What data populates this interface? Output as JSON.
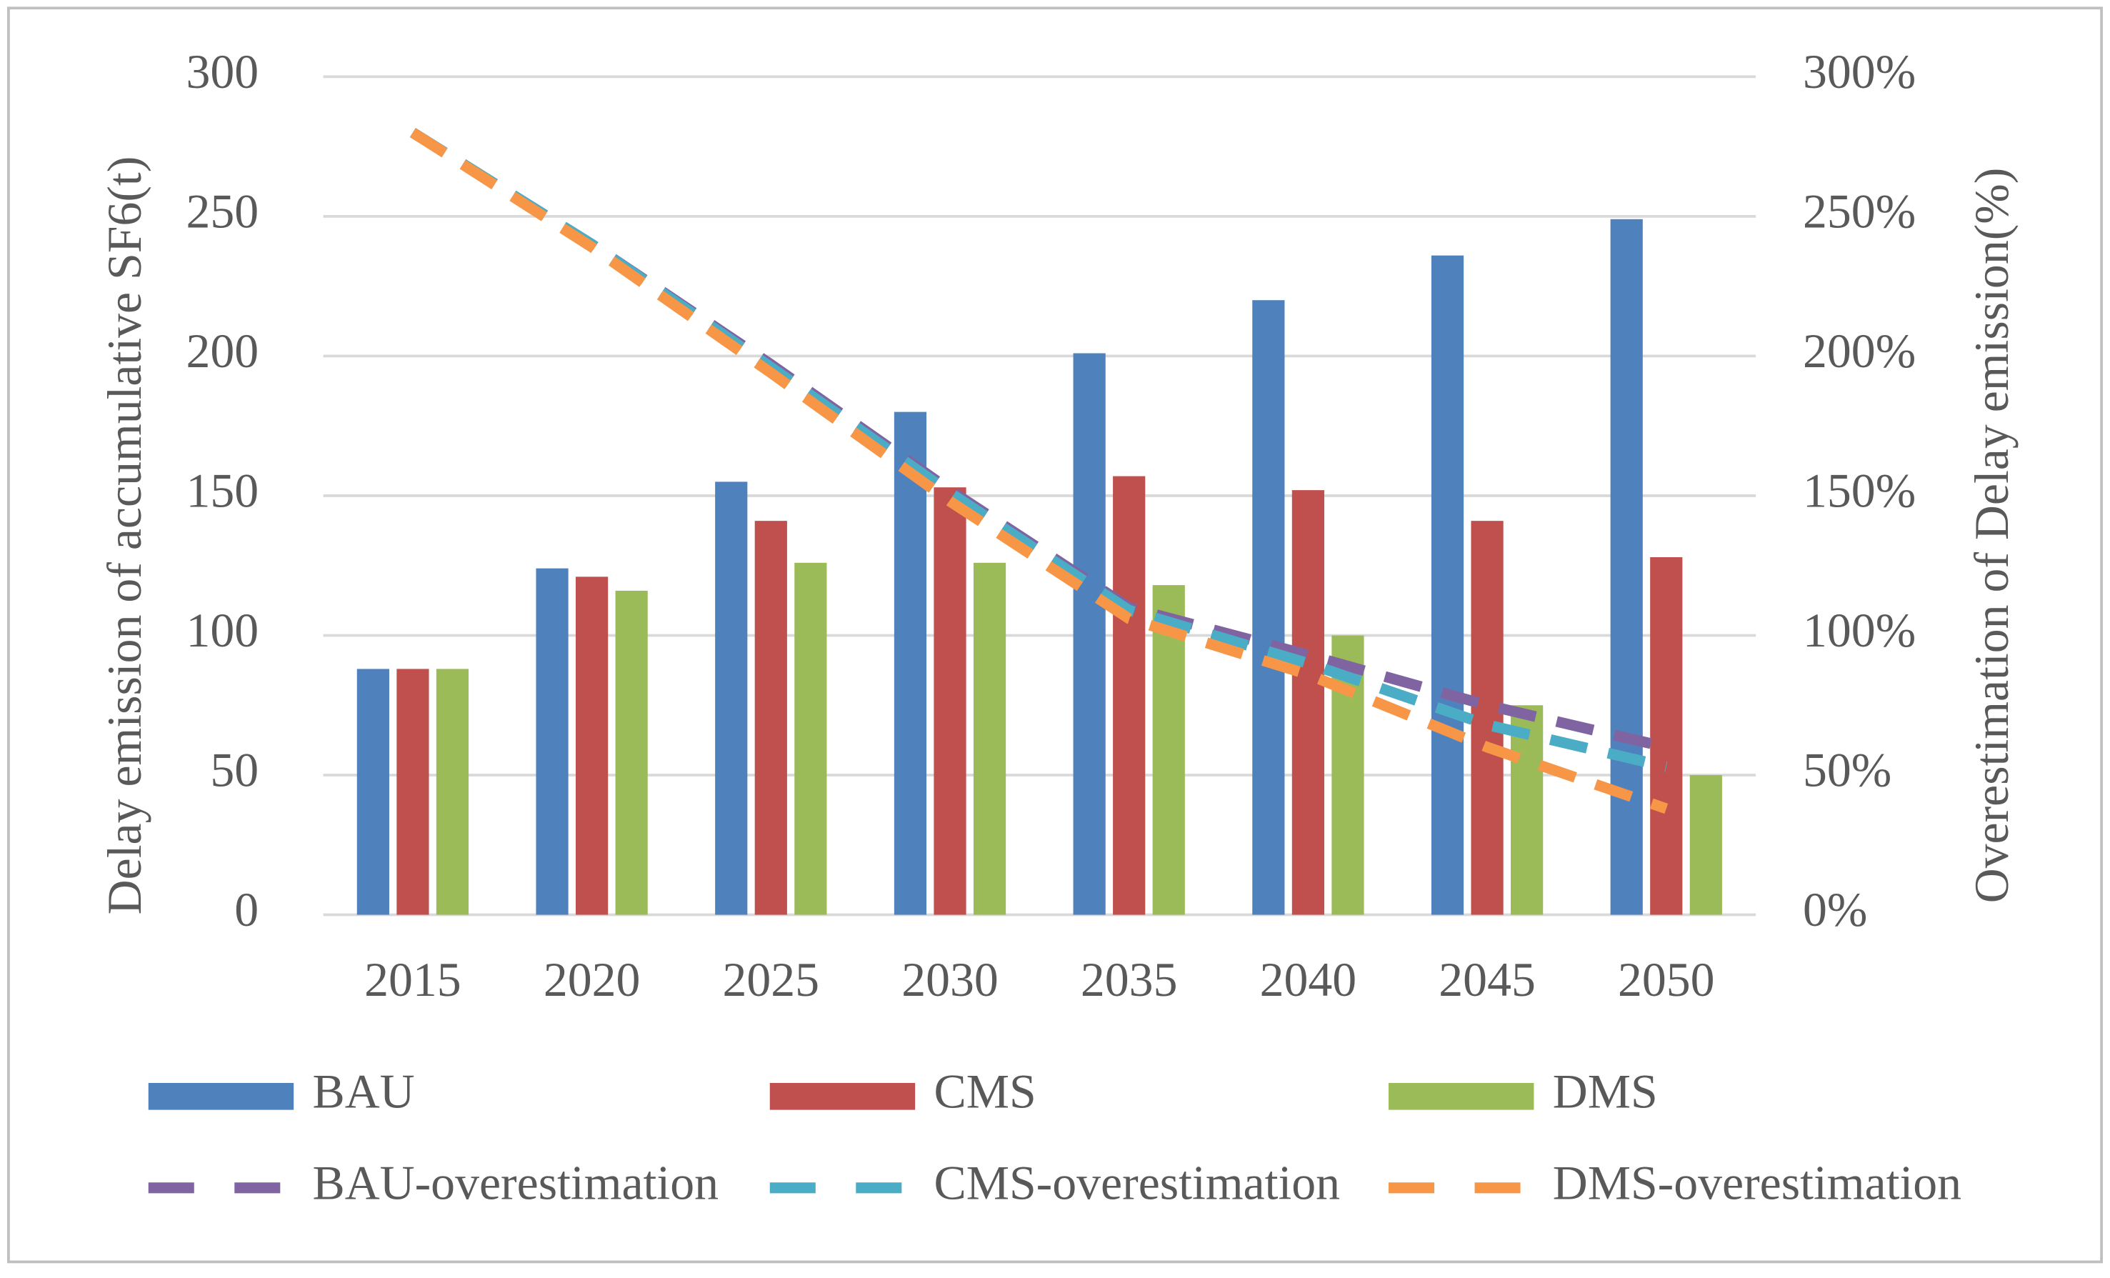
{
  "chart_data": {
    "type": "bar-line",
    "y_label": "Delay emission of accumulative SF6(t)",
    "y2_label": "Overestimation of Delay emission(%)",
    "categories": [
      "2015",
      "2020",
      "2025",
      "2030",
      "2035",
      "2040",
      "2045",
      "2050"
    ],
    "ylim": [
      0,
      300
    ],
    "yticks": [
      0,
      50,
      100,
      150,
      200,
      250,
      300
    ],
    "y2lim": [
      0,
      300
    ],
    "y2ticks": [
      {
        "value": 0,
        "label": "0%"
      },
      {
        "value": 50,
        "label": "50%"
      },
      {
        "value": 100,
        "label": "100%"
      },
      {
        "value": 150,
        "label": "150%"
      },
      {
        "value": 200,
        "label": "200%"
      },
      {
        "value": 250,
        "label": "250%"
      },
      {
        "value": 300,
        "label": "300%"
      }
    ],
    "grid": true,
    "series": [
      {
        "name": "BAU",
        "type": "bar",
        "color": "#4f81bd",
        "values": [
          88,
          124,
          155,
          180,
          201,
          220,
          236,
          249
        ]
      },
      {
        "name": "CMS",
        "type": "bar",
        "color": "#c0504d",
        "values": [
          88,
          121,
          141,
          153,
          157,
          152,
          141,
          128
        ]
      },
      {
        "name": "DMS",
        "type": "bar",
        "color": "#9bbb59",
        "values": [
          88,
          116,
          126,
          126,
          118,
          100,
          75,
          50
        ]
      },
      {
        "name": "BAU-overestimation",
        "type": "line",
        "axis": "y2",
        "color": "#8064a2",
        "values": [
          280,
          240,
          197,
          152,
          110,
          93,
          75,
          60
        ]
      },
      {
        "name": "CMS-overestimation",
        "type": "line",
        "axis": "y2",
        "color": "#4bacc6",
        "values": [
          280,
          240,
          196,
          151,
          109,
          90,
          68,
          53
        ]
      },
      {
        "name": "DMS-overestimation",
        "type": "line",
        "axis": "y2",
        "color": "#f79646",
        "values": [
          280,
          239,
          194,
          148,
          106,
          86,
          60,
          38
        ]
      }
    ]
  }
}
